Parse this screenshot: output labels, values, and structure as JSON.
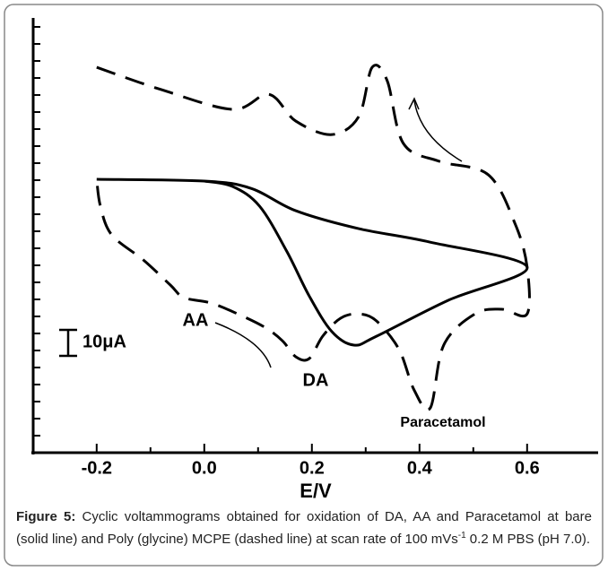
{
  "chart_data": {
    "type": "line",
    "xlabel": "E/V",
    "xlim": [
      -0.318,
      0.732
    ],
    "ylim": [
      0,
      166.6
    ],
    "xticks": [
      -0.2,
      {
        "value": 0,
        "label": "0.0"
      },
      0.2,
      0.4,
      0.6
    ],
    "scale_bar": {
      "value": 10,
      "label": "10μA"
    },
    "annotations": [
      "AA",
      "DA",
      "Paracetamol"
    ],
    "series": [
      {
        "color": "#000000",
        "style": "solid",
        "x": [
          -0.2,
          0.0,
          0.087,
          0.17,
          0.287,
          0.42,
          0.6,
          0.453,
          0.32,
          0.278,
          0.237,
          0.195,
          0.153,
          0.103,
          0.053,
          0.0
        ],
        "values": [
          105.2,
          104.5,
          101.7,
          93.1,
          86.2,
          81.0,
          71.4,
          58.6,
          44.8,
          41.4,
          46.6,
          60.3,
          77.6,
          94.8,
          102.4,
          104.5
        ]
      },
      {
        "color": "#000000",
        "style": "dashed",
        "x": [
          -0.2,
          -0.08,
          0.053,
          0.12,
          0.17,
          0.237,
          0.287,
          0.312,
          0.34,
          0.37,
          0.437,
          0.528,
          0.578,
          0.6,
          0.6,
          0.553,
          0.503,
          0.445,
          0.42,
          0.39,
          0.362,
          0.32,
          0.287,
          0.253,
          0.22,
          0.195,
          0.17,
          0.145,
          0.112,
          0.062,
          0.012,
          -0.038,
          -0.063,
          -0.113,
          -0.172,
          -0.193,
          -0.2
        ],
        "values": [
          148.3,
          139.7,
          132.1,
          137.9,
          127.6,
          122.4,
          129.3,
          148.3,
          143.1,
          119.0,
          112.1,
          106.9,
          87.9,
          71.4,
          53.4,
          55.2,
          53.4,
          41.4,
          17.2,
          24.1,
          39.7,
          50.7,
          53.4,
          51.7,
          44.8,
          36.2,
          36.9,
          43.1,
          48.3,
          53.4,
          57.6,
          59.7,
          64.5,
          74.1,
          83.8,
          94.8,
          105.2
        ]
      }
    ]
  },
  "caption": {
    "label": "Figure 5:",
    "text": "Cyclic voltammograms obtained for oxidation of DA, AA and Paracetamol at bare (solid line) and Poly (glycine) MCPE (dashed line) at scan rate of 100 mVs",
    "superscript": "-1",
    "text_end": " 0.2 M PBS (pH 7.0)."
  }
}
